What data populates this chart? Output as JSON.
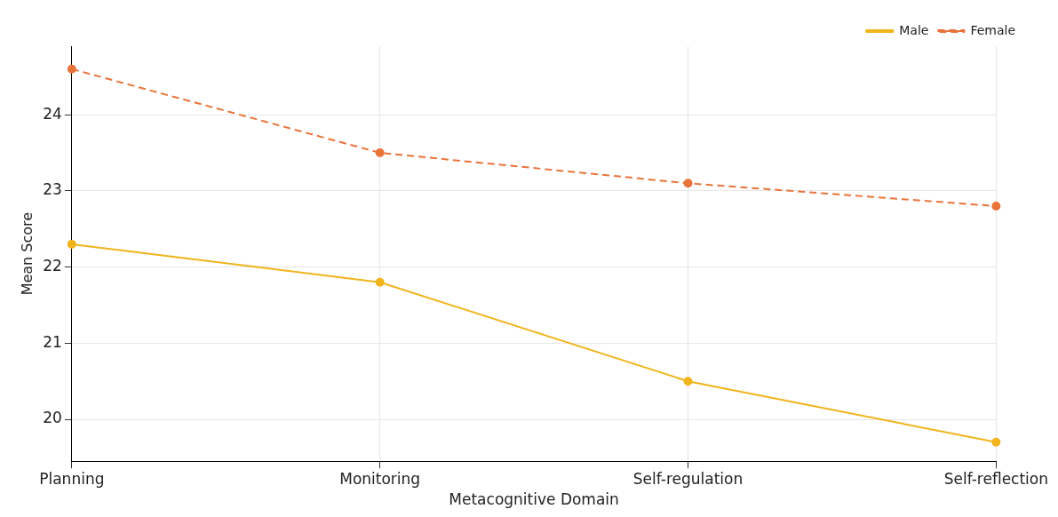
{
  "chart_data": {
    "type": "line",
    "xlabel": "Metacognitive Domain",
    "ylabel": "Mean Score",
    "categories": [
      "Planning",
      "Monitoring",
      "Self-regulation",
      "Self-reflection"
    ],
    "series": [
      {
        "name": "Male",
        "color": "#f0b41c",
        "values": [
          22.3,
          21.8,
          20.5,
          19.7
        ],
        "line_style": "solid"
      },
      {
        "name": "Female",
        "color": "#e8743b",
        "values": [
          24.6,
          23.5,
          23.1,
          22.8
        ],
        "line_style": "dashed"
      }
    ],
    "ylim": [
      19.45,
      24.9
    ],
    "yticks": [
      20,
      21,
      22,
      23,
      24
    ],
    "grid": true,
    "legend": "top right",
    "marker": "circle"
  }
}
